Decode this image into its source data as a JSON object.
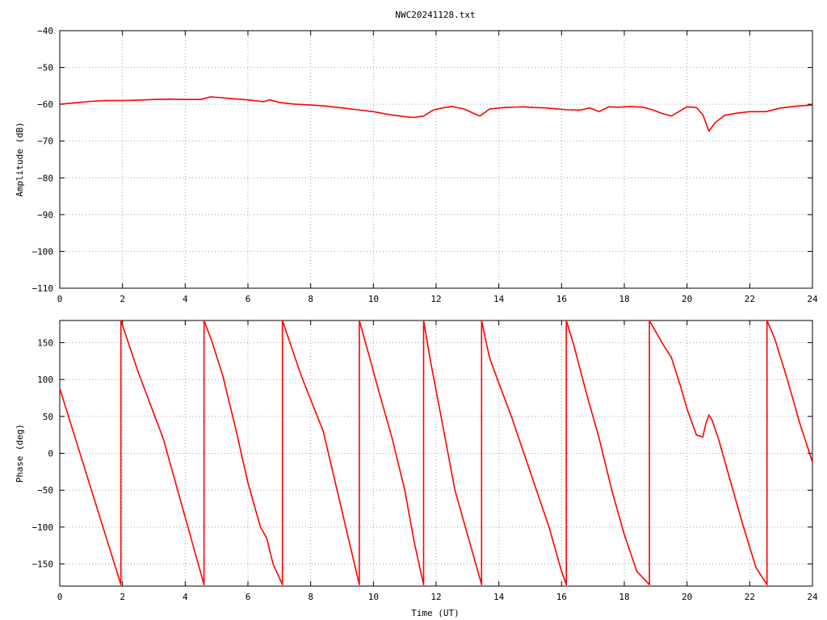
{
  "title": "NWC20241128.txt",
  "chart_data": [
    {
      "type": "line",
      "ylabel": "Amplitude (dB)",
      "xlabel": "",
      "xlim": [
        0,
        24
      ],
      "ylim": [
        -110,
        -40
      ],
      "xticks": [
        0,
        2,
        4,
        6,
        8,
        10,
        12,
        14,
        16,
        18,
        20,
        22,
        24
      ],
      "yticks": [
        -110,
        -100,
        -90,
        -80,
        -70,
        -60,
        -50,
        -40
      ],
      "grid": true,
      "color": "#ff0000",
      "series": [
        {
          "x": [
            0,
            0.5,
            1,
            1.5,
            2,
            2.5,
            3,
            3.5,
            4,
            4.5,
            4.8,
            5,
            5.5,
            6,
            6.5,
            6.7,
            7,
            7.5,
            8,
            8.5,
            9,
            9.5,
            10,
            10.5,
            11,
            11.3,
            11.6,
            11.9,
            12.2,
            12.5,
            12.9,
            13.2,
            13.4,
            13.7,
            14.0,
            14.4,
            14.8,
            15.1,
            15.5,
            15.9,
            16.2,
            16.6,
            16.9,
            17.2,
            17.5,
            17.8,
            18.2,
            18.6,
            18.9,
            19.2,
            19.5,
            19.8,
            20.0,
            20.3,
            20.5,
            20.7,
            20.9,
            21.2,
            21.6,
            22.0,
            22.5,
            23.0,
            23.5,
            24.0
          ],
          "y": [
            -60,
            -59.6,
            -59.2,
            -59.0,
            -59.0,
            -58.9,
            -58.7,
            -58.6,
            -58.7,
            -58.7,
            -58.0,
            -58.1,
            -58.5,
            -58.8,
            -59.3,
            -58.8,
            -59.5,
            -60.0,
            -60.2,
            -60.5,
            -61.0,
            -61.5,
            -62.0,
            -62.8,
            -63.4,
            -63.6,
            -63.2,
            -61.6,
            -61.0,
            -60.6,
            -61.3,
            -62.5,
            -63.2,
            -61.3,
            -61.0,
            -60.8,
            -60.7,
            -60.9,
            -61.0,
            -61.3,
            -61.5,
            -61.6,
            -61.0,
            -62.0,
            -60.7,
            -60.8,
            -60.6,
            -60.8,
            -61.5,
            -62.5,
            -63.2,
            -61.7,
            -60.7,
            -60.9,
            -62.8,
            -67.3,
            -65.0,
            -63.0,
            -62.4,
            -62.0,
            -62.0,
            -61.0,
            -60.5,
            -60.2
          ]
        }
      ]
    },
    {
      "type": "line",
      "ylabel": "Phase (deg)",
      "xlabel": "Time (UT)",
      "xlim": [
        0,
        24
      ],
      "ylim": [
        -180,
        180
      ],
      "xticks": [
        0,
        2,
        4,
        6,
        8,
        10,
        12,
        14,
        16,
        18,
        20,
        22,
        24
      ],
      "yticks": [
        -150,
        -100,
        -50,
        0,
        50,
        100,
        150
      ],
      "grid": true,
      "color": "#ff0000",
      "series": [
        {
          "x": [
            0,
            1.95,
            1.95,
            2.5,
            3.3,
            4.6,
            4.6,
            4.85,
            5.2,
            5.6,
            6.0,
            6.4,
            6.6,
            6.8,
            7.1,
            7.1,
            7.7,
            8.4,
            9.55,
            9.55,
            9.8,
            10.2,
            10.6,
            11.0,
            11.3,
            11.6,
            11.6,
            11.8,
            12.2,
            12.6,
            13.0,
            13.45,
            13.45,
            13.7,
            14.0,
            14.4,
            14.8,
            15.2,
            15.6,
            16.0,
            16.15,
            16.15,
            16.4,
            16.8,
            17.2,
            17.6,
            18.0,
            18.4,
            18.8,
            18.8,
            19.0,
            19.2,
            19.5,
            19.8,
            20.0,
            20.3,
            20.5,
            20.6,
            20.7,
            20.8,
            21.0,
            21.4,
            21.8,
            22.2,
            22.55,
            22.55,
            22.8,
            23.2,
            23.6,
            24.0
          ],
          "y": [
            88,
            -178,
            180,
            110,
            20,
            -178,
            180,
            152,
            105,
            35,
            -40,
            -100,
            -115,
            -150,
            -178,
            180,
            105,
            30,
            -178,
            180,
            142,
            80,
            20,
            -50,
            -120,
            -178,
            180,
            130,
            40,
            -50,
            -110,
            -178,
            180,
            130,
            95,
            50,
            0,
            -50,
            -100,
            -160,
            -178,
            180,
            145,
            80,
            20,
            -50,
            -110,
            -160,
            -178,
            180,
            165,
            150,
            130,
            90,
            60,
            25,
            22,
            40,
            52,
            45,
            20,
            -40,
            -100,
            -155,
            -178,
            180,
            155,
            100,
            40,
            -12
          ]
        }
      ]
    }
  ]
}
